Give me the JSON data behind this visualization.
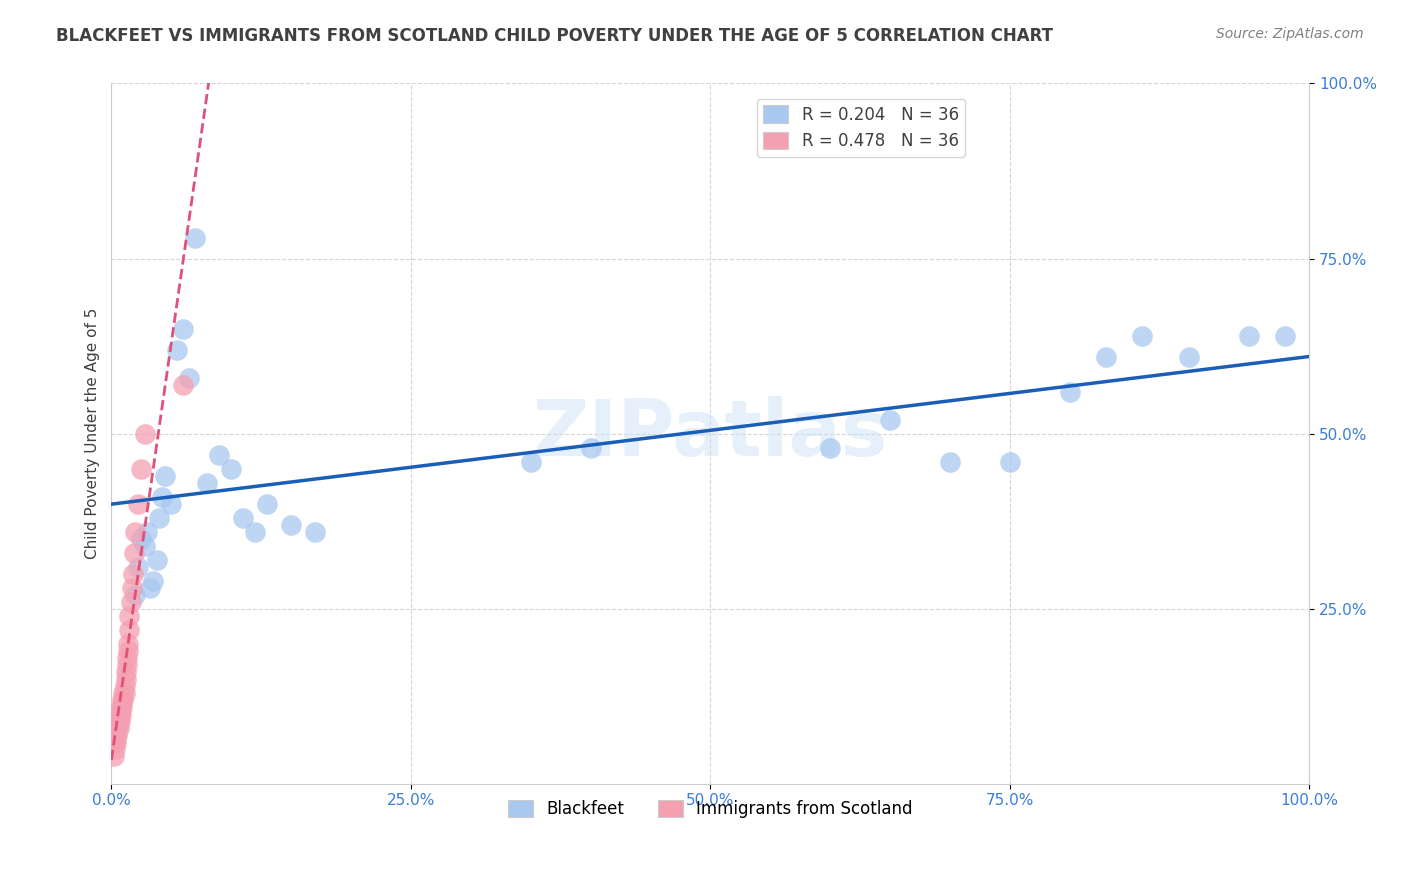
{
  "title": "BLACKFEET VS IMMIGRANTS FROM SCOTLAND CHILD POVERTY UNDER THE AGE OF 5 CORRELATION CHART",
  "source": "Source: ZipAtlas.com",
  "ylabel": "Child Poverty Under the Age of 5",
  "xlim": [
    0,
    1.0
  ],
  "ylim": [
    0,
    1.0
  ],
  "xtick_labels": [
    "0.0%",
    "25.0%",
    "50.0%",
    "75.0%",
    "100.0%"
  ],
  "xtick_positions": [
    0.0,
    0.25,
    0.5,
    0.75,
    1.0
  ],
  "ytick_labels": [
    "25.0%",
    "50.0%",
    "75.0%",
    "100.0%"
  ],
  "ytick_positions": [
    0.25,
    0.5,
    0.75,
    1.0
  ],
  "watermark": "ZIPatlas",
  "legend_R_items": [
    {
      "label": "R = 0.204   N = 36",
      "color": "#a8c8f0"
    },
    {
      "label": "R = 0.478   N = 36",
      "color": "#f4a0b0"
    }
  ],
  "legend_bottom_items": [
    {
      "label": "Blackfeet",
      "color": "#a8c8f0"
    },
    {
      "label": "Immigrants from Scotland",
      "color": "#f4a0b0"
    }
  ],
  "series_blackfeet": {
    "color": "#a8c8f0",
    "trend_color": "#1a5eb8",
    "x": [
      0.02,
      0.022,
      0.025,
      0.028,
      0.03,
      0.032,
      0.035,
      0.038,
      0.04,
      0.042,
      0.045,
      0.05,
      0.055,
      0.06,
      0.065,
      0.07,
      0.08,
      0.09,
      0.1,
      0.11,
      0.12,
      0.13,
      0.15,
      0.17,
      0.35,
      0.4,
      0.6,
      0.65,
      0.7,
      0.75,
      0.8,
      0.83,
      0.86,
      0.9,
      0.95,
      0.98
    ],
    "y": [
      0.27,
      0.31,
      0.35,
      0.34,
      0.36,
      0.28,
      0.29,
      0.32,
      0.38,
      0.41,
      0.44,
      0.4,
      0.62,
      0.65,
      0.58,
      0.78,
      0.43,
      0.47,
      0.45,
      0.38,
      0.36,
      0.4,
      0.37,
      0.36,
      0.46,
      0.48,
      0.48,
      0.52,
      0.46,
      0.46,
      0.56,
      0.61,
      0.64,
      0.61,
      0.64,
      0.64
    ]
  },
  "series_scotland": {
    "color": "#f4a0b0",
    "trend_color": "#e0507a",
    "x": [
      0.002,
      0.003,
      0.003,
      0.004,
      0.004,
      0.005,
      0.005,
      0.006,
      0.006,
      0.007,
      0.007,
      0.008,
      0.008,
      0.009,
      0.009,
      0.01,
      0.01,
      0.011,
      0.011,
      0.012,
      0.012,
      0.013,
      0.013,
      0.014,
      0.014,
      0.015,
      0.015,
      0.016,
      0.017,
      0.018,
      0.019,
      0.02,
      0.022,
      0.025,
      0.028,
      0.06
    ],
    "y": [
      0.04,
      0.05,
      0.06,
      0.06,
      0.07,
      0.07,
      0.08,
      0.08,
      0.09,
      0.09,
      0.1,
      0.1,
      0.11,
      0.11,
      0.12,
      0.12,
      0.13,
      0.13,
      0.14,
      0.15,
      0.16,
      0.17,
      0.18,
      0.19,
      0.2,
      0.22,
      0.24,
      0.26,
      0.28,
      0.3,
      0.33,
      0.36,
      0.4,
      0.45,
      0.5,
      0.57
    ]
  },
  "background_color": "#ffffff",
  "grid_color": "#cccccc",
  "title_color": "#404040",
  "source_color": "#808080",
  "tick_color": "#3a7fd5"
}
